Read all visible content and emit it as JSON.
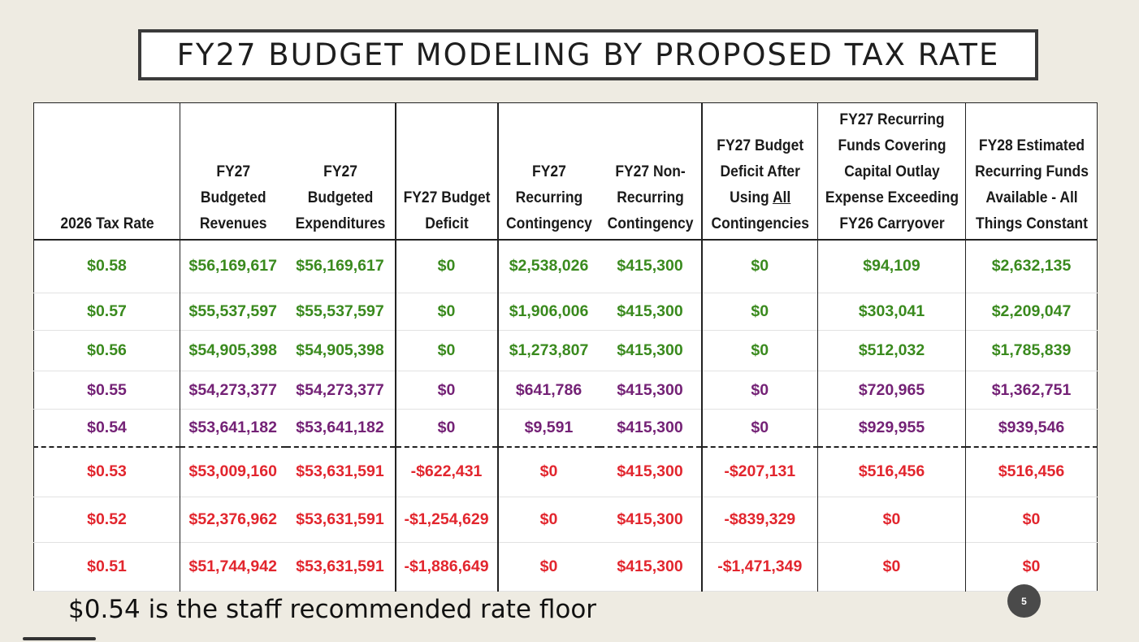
{
  "title": "FY27 BUDGET MODELING BY PROPOSED TAX RATE",
  "headers": [
    [
      "2026 Tax Rate"
    ],
    [
      "FY27",
      "Budgeted",
      "Revenues"
    ],
    [
      "FY27",
      "Budgeted",
      "Expenditures"
    ],
    [
      "FY27 Budget",
      "Deficit"
    ],
    [
      "FY27",
      "Recurring",
      "Contingency"
    ],
    [
      "FY27 Non-",
      "Recurring",
      "Contingency"
    ],
    [
      "FY27 Budget",
      "Deficit After",
      "Using All",
      "Contingencies"
    ],
    [
      "FY27 Recurring",
      "Funds Covering",
      "Capital Outlay",
      "Expense Exceeding",
      "FY26 Carryover"
    ],
    [
      "FY28 Estimated",
      "Recurring Funds",
      "Available - All",
      "Things Constant"
    ]
  ],
  "rows": [
    {
      "color": "green",
      "cells": [
        "$0.58",
        "$56,169,617",
        "$56,169,617",
        "$0",
        "$2,538,026",
        "$415,300",
        "$0",
        "$94,109",
        "$2,632,135"
      ]
    },
    {
      "color": "green",
      "cells": [
        "$0.57",
        "$55,537,597",
        "$55,537,597",
        "$0",
        "$1,906,006",
        "$415,300",
        "$0",
        "$303,041",
        "$2,209,047"
      ]
    },
    {
      "color": "green",
      "cells": [
        "$0.56",
        "$54,905,398",
        "$54,905,398",
        "$0",
        "$1,273,807",
        "$415,300",
        "$0",
        "$512,032",
        "$1,785,839"
      ]
    },
    {
      "color": "purple",
      "cells": [
        "$0.55",
        "$54,273,377",
        "$54,273,377",
        "$0",
        "$641,786",
        "$415,300",
        "$0",
        "$720,965",
        "$1,362,751"
      ]
    },
    {
      "color": "purple",
      "cells": [
        "$0.54",
        "$53,641,182",
        "$53,641,182",
        "$0",
        "$9,591",
        "$415,300",
        "$0",
        "$929,955",
        "$939,546"
      ]
    },
    {
      "color": "red",
      "cells": [
        "$0.53",
        "$53,009,160",
        "$53,631,591",
        "-$622,431",
        "$0",
        "$415,300",
        "-$207,131",
        "$516,456",
        "$516,456"
      ]
    },
    {
      "color": "red",
      "cells": [
        "$0.52",
        "$52,376,962",
        "$53,631,591",
        "-$1,254,629",
        "$0",
        "$415,300",
        "-$839,329",
        "$0",
        "$0"
      ]
    },
    {
      "color": "red",
      "cells": [
        "$0.51",
        "$51,744,942",
        "$53,631,591",
        "-$1,886,649",
        "$0",
        "$415,300",
        "-$1,471,349",
        "$0",
        "$0"
      ]
    }
  ],
  "footnote": "$0.54 is the staff recommended rate floor",
  "page_number": "5",
  "colors": {
    "green": "#3a8a1e",
    "purple": "#742276",
    "red": "#e2262e"
  }
}
